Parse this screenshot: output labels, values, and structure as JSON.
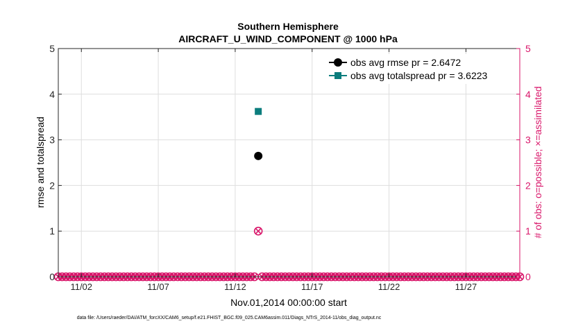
{
  "chart_data": {
    "type": "scatter",
    "title": "Southern Hemisphere",
    "subtitle": "AIRCRAFT_U_WIND_COMPONENT @ 1000 hPa",
    "xlabel": "Nov.01,2014 00:00:00 start",
    "ylabel": "rmse and totalspread",
    "y2label": "# of obs: o=possible; ×=assimilated",
    "xlim": [
      0.5,
      30.5
    ],
    "ylim": [
      0,
      5
    ],
    "y2lim": [
      0,
      5
    ],
    "yticks": [
      0,
      1,
      2,
      3,
      4,
      5
    ],
    "y2ticks": [
      0,
      1,
      2,
      3,
      4,
      5
    ],
    "xticks": [
      {
        "x": 2,
        "label": "11/02"
      },
      {
        "x": 7,
        "label": "11/07"
      },
      {
        "x": 12,
        "label": "11/12"
      },
      {
        "x": 17,
        "label": "11/17"
      },
      {
        "x": 22,
        "label": "11/22"
      },
      {
        "x": 27,
        "label": "11/27"
      }
    ],
    "grid": true,
    "legend_position": "top-right",
    "series": [
      {
        "name": "obs avg rmse pr = 2.6472",
        "axis": "left",
        "marker": "circle",
        "color": "#000000",
        "points": [
          [
            13.5,
            2.6472
          ]
        ]
      },
      {
        "name": "obs avg totalspread pr = 3.6223",
        "axis": "left",
        "marker": "square",
        "color": "#0b7d7d",
        "points": [
          [
            13.5,
            3.6223
          ]
        ]
      },
      {
        "axis": "right",
        "marker": "open-circle",
        "color": "#d9166a",
        "obs_x_start": 0.5,
        "obs_x_step": 0.25,
        "obs_count": 121,
        "nonzero": [
          [
            13.5,
            1
          ]
        ]
      },
      {
        "axis": "right",
        "marker": "cross",
        "color": "#d9166a",
        "obs_x_start": 0.5,
        "obs_x_step": 0.25,
        "obs_count": 121,
        "nonzero": [
          [
            13.5,
            1
          ]
        ]
      }
    ]
  },
  "footnote": "data file: /Users/raeder/DAI/ATM_forcXX/CAM6_setup/f.e21.FHIST_BGC.f09_025.CAM6assim.011/Diags_NTrS_2014-11/obs_diag_output.nc"
}
